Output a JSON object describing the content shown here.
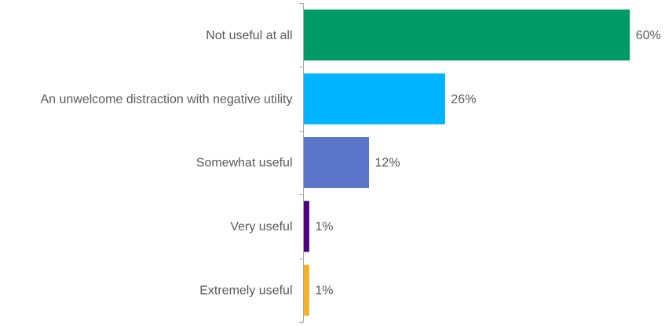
{
  "chart_data": {
    "type": "hbar",
    "categories": [
      "Not useful at all",
      "An unwelcome distraction with negative utility",
      "Somewhat useful",
      "Very useful",
      "Extremely useful"
    ],
    "values": [
      60,
      26,
      12,
      1,
      1
    ],
    "value_labels": [
      "60%",
      "26%",
      "12%",
      "1%",
      "1%"
    ],
    "colors": [
      "#009a66",
      "#00b4ff",
      "#5b75cb",
      "#4f0080",
      "#f5b323"
    ]
  }
}
